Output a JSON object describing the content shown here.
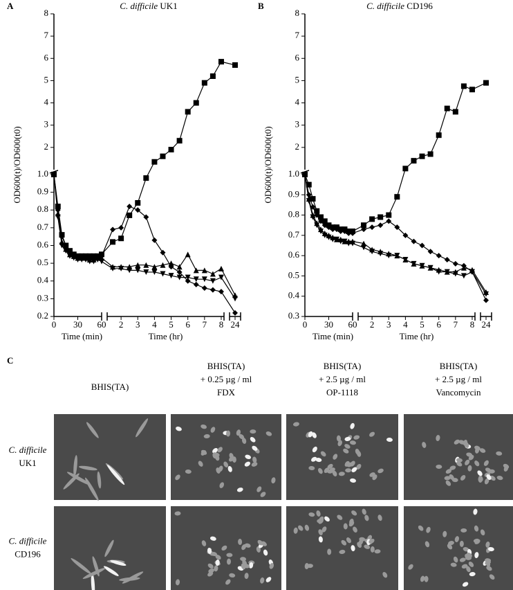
{
  "chart_data": [
    {
      "type": "line",
      "panel": "A",
      "title": [
        "C. difficile",
        "UK1"
      ],
      "ylabel": "OD600(t)/OD600(t0)",
      "x": [
        0,
        5,
        10,
        15,
        20,
        25,
        30,
        35,
        40,
        45,
        50,
        55,
        60,
        90,
        120,
        150,
        180,
        210,
        240,
        270,
        300,
        330,
        360,
        390,
        420,
        450,
        480,
        1440
      ],
      "x_segments": [
        {
          "xlabel": "Time (min)",
          "xlim": [
            0,
            60
          ],
          "xticks": [
            0,
            30,
            60
          ]
        },
        {
          "xlabel": "Time (hr)",
          "xlim": [
            70,
            490
          ],
          "xticks": [
            {
              "value": 120,
              "label": "2"
            },
            {
              "value": 180,
              "label": "3"
            },
            {
              "value": 240,
              "label": "4"
            },
            {
              "value": 300,
              "label": "5"
            },
            {
              "value": 360,
              "label": "6"
            },
            {
              "value": 420,
              "label": "7"
            },
            {
              "value": 480,
              "label": "8"
            }
          ]
        },
        {
          "xlim": [
            1420,
            1460
          ],
          "xticks": [
            {
              "value": 1440,
              "label": "24"
            }
          ]
        }
      ],
      "y_segments": [
        {
          "ylim": [
            0.2,
            1.0
          ],
          "yticks": [
            0.2,
            0.3,
            0.4,
            0.5,
            0.6,
            0.7,
            0.8,
            0.9,
            {
              "value": 1,
              "label": "1.0"
            }
          ]
        },
        {
          "ylim": [
            1,
            8
          ],
          "yticks": [
            2,
            3,
            4,
            5,
            6,
            7,
            8
          ]
        }
      ],
      "series": [
        {
          "marker": "square",
          "color": "#000000",
          "values": [
            1.0,
            0.82,
            0.66,
            0.6,
            0.57,
            0.55,
            0.54,
            0.54,
            0.54,
            0.54,
            0.54,
            0.54,
            0.55,
            0.62,
            0.64,
            0.77,
            0.84,
            0.98,
            1.35,
            1.6,
            1.9,
            2.3,
            3.6,
            4.0,
            4.9,
            5.2,
            5.85,
            5.7
          ]
        },
        {
          "marker": "diamond",
          "color": "#000000",
          "values": [
            1.0,
            0.8,
            0.65,
            0.6,
            0.56,
            0.55,
            0.54,
            0.54,
            0.53,
            0.53,
            0.53,
            0.53,
            0.54,
            0.69,
            0.7,
            0.82,
            0.8,
            0.76,
            0.63,
            0.56,
            0.48,
            0.45,
            0.4,
            0.38,
            0.36,
            0.35,
            0.34,
            0.22
          ]
        },
        {
          "marker": "triangle",
          "color": "#000000",
          "values": [
            1.0,
            0.78,
            0.62,
            0.58,
            0.55,
            0.54,
            0.53,
            0.53,
            0.53,
            0.52,
            0.52,
            0.53,
            0.53,
            0.48,
            0.48,
            0.48,
            0.49,
            0.49,
            0.48,
            0.49,
            0.5,
            0.48,
            0.55,
            0.46,
            0.46,
            0.44,
            0.47,
            0.32
          ]
        },
        {
          "marker": "triangle-down",
          "color": "#000000",
          "values": [
            1.0,
            0.76,
            0.6,
            0.57,
            0.54,
            0.53,
            0.52,
            0.52,
            0.52,
            0.51,
            0.51,
            0.52,
            0.51,
            0.47,
            0.47,
            0.46,
            0.46,
            0.45,
            0.45,
            0.44,
            0.43,
            0.42,
            0.42,
            0.41,
            0.41,
            0.4,
            0.42,
            0.3
          ]
        }
      ]
    },
    {
      "type": "line",
      "panel": "B",
      "title": [
        "C. difficile",
        "CD196"
      ],
      "ylabel": "OD600(t)/OD600(t0)",
      "x": [
        0,
        5,
        10,
        15,
        20,
        25,
        30,
        35,
        40,
        45,
        50,
        55,
        60,
        90,
        120,
        150,
        180,
        210,
        240,
        270,
        300,
        330,
        360,
        390,
        420,
        450,
        480,
        1440
      ],
      "x_segments": [
        {
          "xlabel": "Time (min)",
          "xlim": [
            0,
            60
          ],
          "xticks": [
            0,
            30,
            60
          ]
        },
        {
          "xlabel": "Time (hr)",
          "xlim": [
            70,
            490
          ],
          "xticks": [
            {
              "value": 120,
              "label": "2"
            },
            {
              "value": 180,
              "label": "3"
            },
            {
              "value": 240,
              "label": "4"
            },
            {
              "value": 300,
              "label": "5"
            },
            {
              "value": 360,
              "label": "6"
            },
            {
              "value": 420,
              "label": "7"
            },
            {
              "value": 480,
              "label": "8"
            }
          ]
        },
        {
          "xlim": [
            1420,
            1460
          ],
          "xticks": [
            {
              "value": 1440,
              "label": "24"
            }
          ]
        }
      ],
      "y_segments": [
        {
          "ylim": [
            0.3,
            1.0
          ],
          "yticks": [
            0.3,
            0.4,
            0.5,
            0.6,
            0.7,
            0.8,
            0.9,
            {
              "value": 1,
              "label": "1.0"
            }
          ]
        },
        {
          "ylim": [
            1,
            8
          ],
          "yticks": [
            2,
            3,
            4,
            5,
            6,
            7,
            8
          ]
        }
      ],
      "series": [
        {
          "marker": "square",
          "color": "#000000",
          "values": [
            1.0,
            0.95,
            0.88,
            0.82,
            0.79,
            0.77,
            0.75,
            0.74,
            0.74,
            0.73,
            0.73,
            0.72,
            0.72,
            0.75,
            0.78,
            0.79,
            0.8,
            0.89,
            1.05,
            1.4,
            1.6,
            1.7,
            2.55,
            3.75,
            3.6,
            4.75,
            4.6,
            4.9
          ]
        },
        {
          "marker": "diamond",
          "color": "#000000",
          "values": [
            1.0,
            0.9,
            0.84,
            0.8,
            0.77,
            0.75,
            0.74,
            0.73,
            0.73,
            0.72,
            0.72,
            0.71,
            0.71,
            0.73,
            0.74,
            0.75,
            0.77,
            0.74,
            0.7,
            0.67,
            0.65,
            0.62,
            0.6,
            0.58,
            0.56,
            0.55,
            0.52,
            0.38
          ]
        },
        {
          "marker": "triangle",
          "color": "#000000",
          "values": [
            1.0,
            0.88,
            0.8,
            0.76,
            0.73,
            0.71,
            0.7,
            0.69,
            0.68,
            0.68,
            0.67,
            0.67,
            0.67,
            0.66,
            0.63,
            0.62,
            0.61,
            0.6,
            0.58,
            0.56,
            0.55,
            0.54,
            0.53,
            0.52,
            0.52,
            0.54,
            0.53,
            0.42
          ]
        },
        {
          "marker": "triangle-down",
          "color": "#000000",
          "values": [
            1.0,
            0.87,
            0.79,
            0.75,
            0.72,
            0.7,
            0.69,
            0.68,
            0.68,
            0.67,
            0.67,
            0.66,
            0.66,
            0.64,
            0.62,
            0.61,
            0.6,
            0.6,
            0.58,
            0.56,
            0.55,
            0.54,
            0.52,
            0.52,
            0.51,
            0.5,
            0.52,
            0.41
          ]
        }
      ]
    }
  ],
  "panel_c": {
    "panel": "C",
    "columns": [
      [
        "BHIS(TA)"
      ],
      [
        "BHIS(TA)",
        "+ 0.25 µg / ml",
        "FDX"
      ],
      [
        "BHIS(TA)",
        "+ 2.5 µg / ml",
        "OP-1118"
      ],
      [
        "BHIS(TA)",
        "+ 2.5 µg / ml",
        "Vancomycin"
      ]
    ],
    "rows": [
      [
        "C. difficile",
        "UK1"
      ],
      [
        "C. difficile",
        "CD196"
      ]
    ]
  }
}
